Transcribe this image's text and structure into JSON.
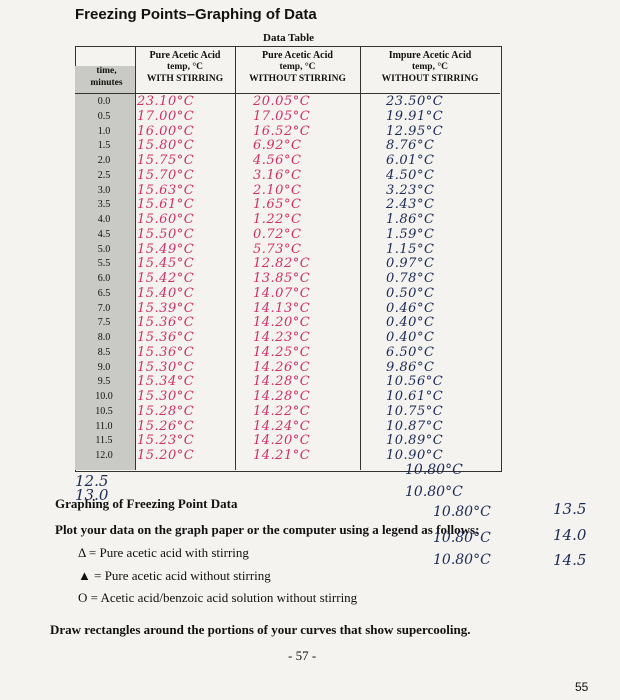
{
  "header": {
    "title": "Freezing Points–Graphing of Data"
  },
  "table": {
    "caption": "Data Table",
    "columns": [
      [
        "time,",
        "minutes"
      ],
      [
        "Pure Acetic Acid",
        "temp, °C",
        "WITH STIRRING"
      ],
      [
        "Pure Acetic Acid",
        "temp, °C",
        "WITHOUT STIRRING"
      ],
      [
        "Impure Acetic Acid",
        "temp, °C",
        "WITHOUT STIRRING"
      ]
    ],
    "rows": [
      [
        "0.0",
        "23.10°C",
        "20.05°C",
        "23.50°C"
      ],
      [
        "0.5",
        "17.00°C",
        "17.05°C",
        "19.91°C"
      ],
      [
        "1.0",
        "16.00°C",
        "16.52°C",
        "12.95°C"
      ],
      [
        "1.5",
        "15.80°C",
        "6.92°C",
        "8.76°C"
      ],
      [
        "2.0",
        "15.75°C",
        "4.56°C",
        "6.01°C"
      ],
      [
        "2.5",
        "15.70°C",
        "3.16°C",
        "4.50°C"
      ],
      [
        "3.0",
        "15.63°C",
        "2.10°C",
        "3.23°C"
      ],
      [
        "3.5",
        "15.61°C",
        "1.65°C",
        "2.43°C"
      ],
      [
        "4.0",
        "15.60°C",
        "1.22°C",
        "1.86°C"
      ],
      [
        "4.5",
        "15.50°C",
        "0.72°C",
        "1.59°C"
      ],
      [
        "5.0",
        "15.49°C",
        "5.73°C",
        "1.15°C"
      ],
      [
        "5.5",
        "15.45°C",
        "12.82°C",
        "0.97°C"
      ],
      [
        "6.0",
        "15.42°C",
        "13.85°C",
        "0.78°C"
      ],
      [
        "6.5",
        "15.40°C",
        "14.07°C",
        "0.50°C"
      ],
      [
        "7.0",
        "15.39°C",
        "14.13°C",
        "0.46°C"
      ],
      [
        "7.5",
        "15.36°C",
        "14.20°C",
        "0.40°C"
      ],
      [
        "8.0",
        "15.36°C",
        "14.23°C",
        "0.40°C"
      ],
      [
        "8.5",
        "15.36°C",
        "14.25°C",
        "6.50°C"
      ],
      [
        "9.0",
        "15.30°C",
        "14.26°C",
        "9.86°C"
      ],
      [
        "9.5",
        "15.34°C",
        "14.28°C",
        "10.56°C"
      ],
      [
        "10.0",
        "15.30°C",
        "14.28°C",
        "10.61°C"
      ],
      [
        "10.5",
        "15.28°C",
        "14.22°C",
        "10.75°C"
      ],
      [
        "11.0",
        "15.26°C",
        "14.24°C",
        "10.87°C"
      ],
      [
        "11.5",
        "15.23°C",
        "14.20°C",
        "10.89°C"
      ],
      [
        "12.0",
        "15.20°C",
        "14.21°C",
        "10.90°C"
      ],
      [
        "12.5",
        null,
        null,
        "10.80°C"
      ],
      [
        "13.0",
        null,
        null,
        "10.80°C"
      ],
      [
        "13.5",
        null,
        null,
        "10.80°C"
      ],
      [
        "14.0",
        null,
        null,
        "10.80°C"
      ],
      [
        "14.5",
        null,
        null,
        "10.80°C"
      ]
    ]
  },
  "section": {
    "title": "Graphing of Freezing Point Data",
    "instruction": "Plot your data on the graph paper or the computer using a legend as follows:",
    "legend": [
      "Δ = Pure acetic acid with stirring",
      "▲ = Pure acetic acid without stirring",
      "O = Acetic acid/benzoic acid solution without stirring"
    ],
    "note": "Draw rectangles around the portions of your curves that show supercooling."
  },
  "footer": {
    "page": "- 57 -",
    "corner": "55"
  }
}
